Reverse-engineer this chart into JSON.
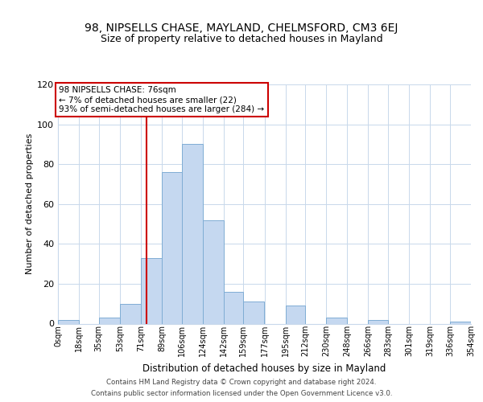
{
  "title1": "98, NIPSELLS CHASE, MAYLAND, CHELMSFORD, CM3 6EJ",
  "title2": "Size of property relative to detached houses in Mayland",
  "xlabel": "Distribution of detached houses by size in Mayland",
  "ylabel": "Number of detached properties",
  "bin_edges": [
    0,
    18,
    35,
    53,
    71,
    89,
    106,
    124,
    142,
    159,
    177,
    195,
    212,
    230,
    248,
    266,
    283,
    301,
    319,
    336,
    354
  ],
  "bin_labels": [
    "0sqm",
    "18sqm",
    "35sqm",
    "53sqm",
    "71sqm",
    "89sqm",
    "106sqm",
    "124sqm",
    "142sqm",
    "159sqm",
    "177sqm",
    "195sqm",
    "212sqm",
    "230sqm",
    "248sqm",
    "266sqm",
    "283sqm",
    "301sqm",
    "319sqm",
    "336sqm",
    "354sqm"
  ],
  "counts": [
    2,
    0,
    3,
    10,
    33,
    76,
    90,
    52,
    16,
    11,
    0,
    9,
    0,
    3,
    0,
    2,
    0,
    0,
    0,
    1
  ],
  "bar_color": "#c5d8f0",
  "bar_edge_color": "#7fadd4",
  "vline_x": 76,
  "vline_color": "#cc0000",
  "ylim": [
    0,
    120
  ],
  "yticks": [
    0,
    20,
    40,
    60,
    80,
    100,
    120
  ],
  "annotation_title": "98 NIPSELLS CHASE: 76sqm",
  "annotation_line1": "← 7% of detached houses are smaller (22)",
  "annotation_line2": "93% of semi-detached houses are larger (284) →",
  "annotation_box_color": "#ffffff",
  "annotation_box_edge_color": "#cc0000",
  "footer1": "Contains HM Land Registry data © Crown copyright and database right 2024.",
  "footer2": "Contains public sector information licensed under the Open Government Licence v3.0.",
  "background_color": "#ffffff",
  "grid_color": "#c8d8eb"
}
